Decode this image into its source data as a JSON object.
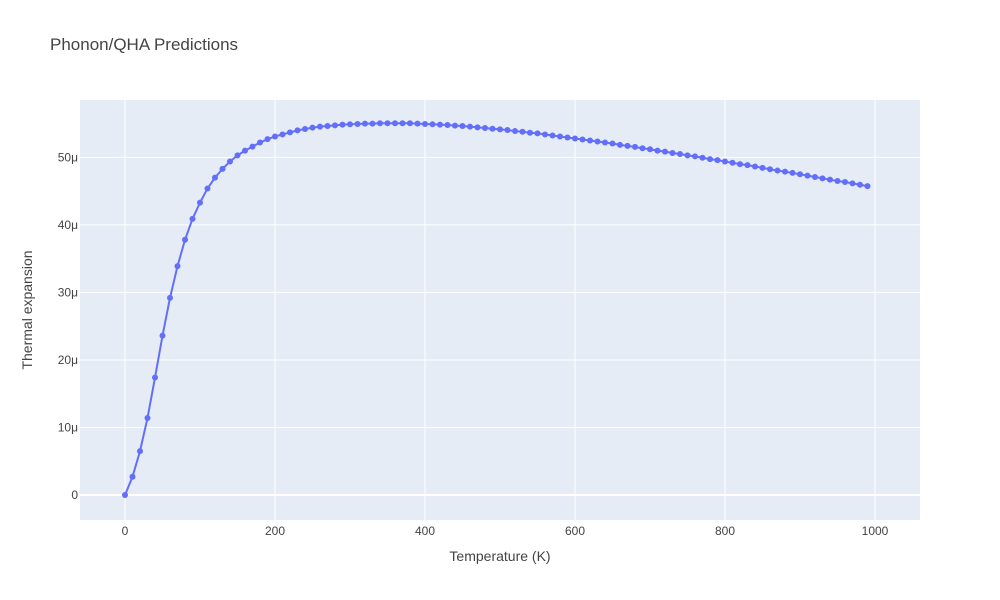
{
  "chart_data": {
    "type": "line",
    "title": "Phonon/QHA Predictions",
    "xlabel": "Temperature (K)",
    "ylabel": "Thermal expansion",
    "xlim": [
      -60,
      1060
    ],
    "ylim": [
      -3.7e-06,
      5.85e-05
    ],
    "x_ticks": [
      0,
      200,
      400,
      600,
      800,
      1000
    ],
    "x_tick_labels": [
      "0",
      "200",
      "400",
      "600",
      "800",
      "1000"
    ],
    "y_ticks": [
      0,
      1e-05,
      2e-05,
      3e-05,
      4e-05,
      5e-05
    ],
    "y_tick_labels": [
      "0",
      "10μ",
      "20μ",
      "30μ",
      "40μ",
      "50μ"
    ],
    "grid": true,
    "legend": "none",
    "colors": {
      "plot_background": "#e5ecf6",
      "grid": "#ffffff",
      "series": "#636efa"
    },
    "series": [
      {
        "mode": "lines+markers",
        "x": [
          0,
          10,
          20,
          30,
          40,
          50,
          60,
          70,
          80,
          90,
          100,
          110,
          120,
          130,
          140,
          150,
          160,
          170,
          180,
          190,
          200,
          210,
          220,
          230,
          240,
          250,
          260,
          270,
          280,
          290,
          300,
          310,
          320,
          330,
          340,
          350,
          360,
          370,
          380,
          390,
          400,
          410,
          420,
          430,
          440,
          450,
          460,
          470,
          480,
          490,
          500,
          510,
          520,
          530,
          540,
          550,
          560,
          570,
          580,
          590,
          600,
          610,
          620,
          630,
          640,
          650,
          660,
          670,
          680,
          690,
          700,
          710,
          720,
          730,
          740,
          750,
          760,
          770,
          780,
          790,
          800,
          810,
          820,
          830,
          840,
          850,
          860,
          870,
          880,
          890,
          900,
          910,
          920,
          930,
          940,
          950,
          960,
          970,
          980,
          990
        ],
        "y": [
          0,
          2.7e-06,
          6.5e-06,
          1.14e-05,
          1.74e-05,
          2.36e-05,
          2.92e-05,
          3.39e-05,
          3.78e-05,
          4.09e-05,
          4.33e-05,
          4.54e-05,
          4.7e-05,
          4.83e-05,
          4.94e-05,
          5.03e-05,
          5.1e-05,
          5.16e-05,
          5.22e-05,
          5.27e-05,
          5.31e-05,
          5.34e-05,
          5.37e-05,
          5.4e-05,
          5.42e-05,
          5.44e-05,
          5.455e-05,
          5.465e-05,
          5.475e-05,
          5.485e-05,
          5.49e-05,
          5.495e-05,
          5.5e-05,
          5.5e-05,
          5.505e-05,
          5.505e-05,
          5.505e-05,
          5.505e-05,
          5.505e-05,
          5.5e-05,
          5.495e-05,
          5.49e-05,
          5.485e-05,
          5.48e-05,
          5.47e-05,
          5.465e-05,
          5.455e-05,
          5.445e-05,
          5.435e-05,
          5.425e-05,
          5.415e-05,
          5.405e-05,
          5.39e-05,
          5.38e-05,
          5.365e-05,
          5.355e-05,
          5.34e-05,
          5.325e-05,
          5.31e-05,
          5.295e-05,
          5.28e-05,
          5.265e-05,
          5.25e-05,
          5.235e-05,
          5.22e-05,
          5.205e-05,
          5.185e-05,
          5.17e-05,
          5.155e-05,
          5.135e-05,
          5.12e-05,
          5.1e-05,
          5.085e-05,
          5.065e-05,
          5.05e-05,
          5.03e-05,
          5.015e-05,
          4.995e-05,
          4.975e-05,
          4.96e-05,
          4.94e-05,
          4.92e-05,
          4.9e-05,
          4.885e-05,
          4.865e-05,
          4.845e-05,
          4.825e-05,
          4.805e-05,
          4.79e-05,
          4.77e-05,
          4.75e-05,
          4.73e-05,
          4.71e-05,
          4.69e-05,
          4.67e-05,
          4.65e-05,
          4.635e-05,
          4.615e-05,
          4.595e-05,
          4.575e-05
        ]
      }
    ]
  }
}
